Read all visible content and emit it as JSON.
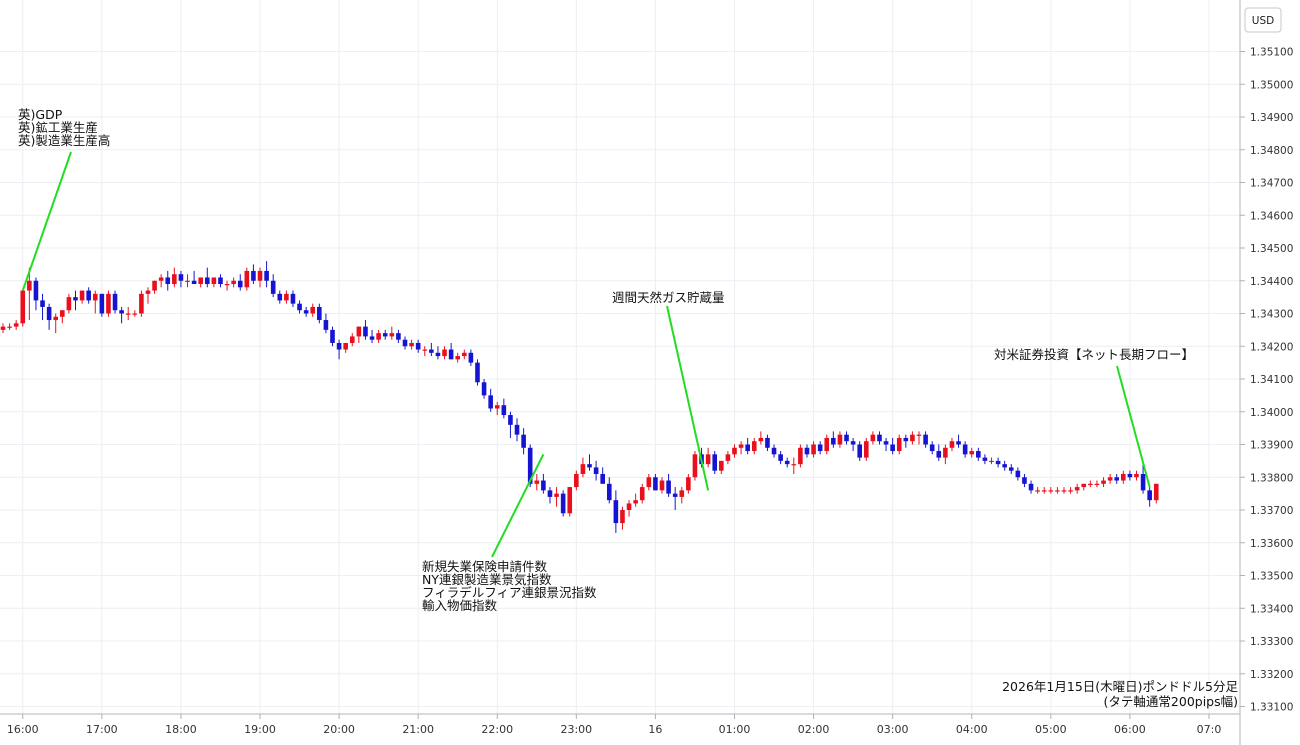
{
  "chart_data": {
    "type": "candlestick",
    "currency": "USD",
    "ylim": [
      1.3309,
      1.3519
    ],
    "grid": true,
    "y_ticks": [
      "1.35100",
      "1.35000",
      "1.34900",
      "1.34800",
      "1.34700",
      "1.34600",
      "1.34500",
      "1.34400",
      "1.34300",
      "1.34200",
      "1.34100",
      "1.34000",
      "1.33900",
      "1.33800",
      "1.33700",
      "1.33600",
      "1.33500",
      "1.33400",
      "1.33300",
      "1.33200",
      "1.33100"
    ],
    "x_ticks": [
      "16:00",
      "17:00",
      "18:00",
      "19:00",
      "20:00",
      "21:00",
      "22:00",
      "23:00",
      "16",
      "01:00",
      "02:00",
      "03:00",
      "04:00",
      "05:00",
      "06:00",
      "07:0"
    ],
    "up_color": "#e8101c",
    "down_color": "#1414d2",
    "annotation_line_color": "#22dd22",
    "candles": [
      [
        1.3425,
        1.3427,
        1.3424,
        1.3426
      ],
      [
        1.3426,
        1.3427,
        1.3425,
        1.3426
      ],
      [
        1.3426,
        1.3428,
        1.3425,
        1.3427
      ],
      [
        1.3427,
        1.3437,
        1.3426,
        1.3437
      ],
      [
        1.3437,
        1.3444,
        1.3428,
        1.344
      ],
      [
        1.344,
        1.3441,
        1.3431,
        1.3434
      ],
      [
        1.3434,
        1.3436,
        1.3428,
        1.3432
      ],
      [
        1.3432,
        1.3433,
        1.3425,
        1.3428
      ],
      [
        1.3428,
        1.343,
        1.3424,
        1.3429
      ],
      [
        1.3429,
        1.3431,
        1.3427,
        1.3431
      ],
      [
        1.3431,
        1.3436,
        1.343,
        1.3435
      ],
      [
        1.3435,
        1.3437,
        1.3431,
        1.3434
      ],
      [
        1.3434,
        1.3437,
        1.3433,
        1.3437
      ],
      [
        1.3437,
        1.3438,
        1.3433,
        1.3434
      ],
      [
        1.3434,
        1.3437,
        1.343,
        1.3436
      ],
      [
        1.3436,
        1.3436,
        1.3429,
        1.343
      ],
      [
        1.343,
        1.3437,
        1.3429,
        1.3436
      ],
      [
        1.3436,
        1.3437,
        1.343,
        1.3431
      ],
      [
        1.3431,
        1.3432,
        1.3427,
        1.343
      ],
      [
        1.343,
        1.3432,
        1.3428,
        1.343
      ],
      [
        1.343,
        1.3431,
        1.3429,
        1.343
      ],
      [
        1.343,
        1.3437,
        1.3429,
        1.3436
      ],
      [
        1.3436,
        1.3438,
        1.3433,
        1.3437
      ],
      [
        1.3437,
        1.344,
        1.3436,
        1.344
      ],
      [
        1.344,
        1.3442,
        1.3438,
        1.3441
      ],
      [
        1.3441,
        1.3443,
        1.3437,
        1.3439
      ],
      [
        1.3439,
        1.3444,
        1.3438,
        1.3442
      ],
      [
        1.3442,
        1.3443,
        1.3438,
        1.344
      ],
      [
        1.344,
        1.3442,
        1.3438,
        1.344
      ],
      [
        1.344,
        1.3443,
        1.3439,
        1.3439
      ],
      [
        1.3439,
        1.3441,
        1.3438,
        1.3441
      ],
      [
        1.3441,
        1.3444,
        1.3438,
        1.3439
      ],
      [
        1.3439,
        1.3441,
        1.3438,
        1.3441
      ],
      [
        1.3441,
        1.3442,
        1.3438,
        1.3439
      ],
      [
        1.3439,
        1.344,
        1.3437,
        1.3439
      ],
      [
        1.3439,
        1.3441,
        1.3438,
        1.344
      ],
      [
        1.344,
        1.3442,
        1.3437,
        1.3438
      ],
      [
        1.3438,
        1.3444,
        1.3437,
        1.3443
      ],
      [
        1.3443,
        1.3445,
        1.3439,
        1.344
      ],
      [
        1.344,
        1.3444,
        1.3438,
        1.3443
      ],
      [
        1.3443,
        1.3446,
        1.3438,
        1.344
      ],
      [
        1.344,
        1.3442,
        1.3435,
        1.3436
      ],
      [
        1.3436,
        1.3437,
        1.3433,
        1.3434
      ],
      [
        1.3434,
        1.3437,
        1.3433,
        1.3436
      ],
      [
        1.3436,
        1.3437,
        1.3432,
        1.3433
      ],
      [
        1.3433,
        1.3434,
        1.343,
        1.3431
      ],
      [
        1.3431,
        1.3432,
        1.3429,
        1.343
      ],
      [
        1.343,
        1.3433,
        1.3429,
        1.3432
      ],
      [
        1.3432,
        1.3433,
        1.3427,
        1.3428
      ],
      [
        1.3428,
        1.343,
        1.3424,
        1.3425
      ],
      [
        1.3425,
        1.3426,
        1.342,
        1.3421
      ],
      [
        1.3421,
        1.3422,
        1.3416,
        1.3419
      ],
      [
        1.3419,
        1.3421,
        1.3418,
        1.3421
      ],
      [
        1.3421,
        1.3424,
        1.342,
        1.3423
      ],
      [
        1.3423,
        1.3426,
        1.3421,
        1.3426
      ],
      [
        1.3426,
        1.3428,
        1.3422,
        1.3423
      ],
      [
        1.3423,
        1.3425,
        1.3421,
        1.3422
      ],
      [
        1.3422,
        1.3425,
        1.3421,
        1.3424
      ],
      [
        1.3424,
        1.3425,
        1.3422,
        1.3423
      ],
      [
        1.3423,
        1.3426,
        1.3422,
        1.3424
      ],
      [
        1.3424,
        1.3425,
        1.3421,
        1.3422
      ],
      [
        1.3422,
        1.3423,
        1.3419,
        1.342
      ],
      [
        1.342,
        1.3422,
        1.3419,
        1.3421
      ],
      [
        1.3421,
        1.3422,
        1.3418,
        1.3419
      ],
      [
        1.3419,
        1.342,
        1.3417,
        1.3419
      ],
      [
        1.3419,
        1.3421,
        1.3417,
        1.3418
      ],
      [
        1.3418,
        1.342,
        1.3416,
        1.3417
      ],
      [
        1.3417,
        1.342,
        1.3416,
        1.3419
      ],
      [
        1.3419,
        1.3421,
        1.3416,
        1.3416
      ],
      [
        1.3416,
        1.3418,
        1.3415,
        1.3417
      ],
      [
        1.3417,
        1.3419,
        1.3416,
        1.3418
      ],
      [
        1.3418,
        1.3419,
        1.3414,
        1.3415
      ],
      [
        1.3415,
        1.3416,
        1.3408,
        1.3409
      ],
      [
        1.3409,
        1.341,
        1.3404,
        1.3405
      ],
      [
        1.3405,
        1.3407,
        1.34,
        1.3401
      ],
      [
        1.3401,
        1.3403,
        1.3399,
        1.3402
      ],
      [
        1.3402,
        1.3404,
        1.3398,
        1.3399
      ],
      [
        1.3399,
        1.34,
        1.3392,
        1.3396
      ],
      [
        1.3396,
        1.3398,
        1.3391,
        1.3393
      ],
      [
        1.3393,
        1.3395,
        1.3387,
        1.3389
      ],
      [
        1.3389,
        1.339,
        1.3377,
        1.3378
      ],
      [
        1.3378,
        1.3381,
        1.3376,
        1.3379
      ],
      [
        1.3379,
        1.3381,
        1.3375,
        1.3376
      ],
      [
        1.3376,
        1.3377,
        1.3372,
        1.3374
      ],
      [
        1.3374,
        1.3377,
        1.3371,
        1.3375
      ],
      [
        1.3375,
        1.3376,
        1.3368,
        1.3369
      ],
      [
        1.3369,
        1.3377,
        1.3368,
        1.3377
      ],
      [
        1.3377,
        1.3382,
        1.3376,
        1.3381
      ],
      [
        1.3381,
        1.3386,
        1.338,
        1.3384
      ],
      [
        1.3384,
        1.3387,
        1.3382,
        1.3383
      ],
      [
        1.3383,
        1.3385,
        1.3379,
        1.3381
      ],
      [
        1.3381,
        1.3383,
        1.3378,
        1.3378
      ],
      [
        1.3378,
        1.338,
        1.3372,
        1.3373
      ],
      [
        1.3373,
        1.3376,
        1.3363,
        1.3366
      ],
      [
        1.3366,
        1.3371,
        1.3364,
        1.337
      ],
      [
        1.337,
        1.3373,
        1.3368,
        1.3372
      ],
      [
        1.3372,
        1.3375,
        1.3371,
        1.3373
      ],
      [
        1.3373,
        1.3378,
        1.3372,
        1.3377
      ],
      [
        1.3377,
        1.3381,
        1.3376,
        1.338
      ],
      [
        1.338,
        1.3381,
        1.3376,
        1.3376
      ],
      [
        1.3376,
        1.338,
        1.3375,
        1.3379
      ],
      [
        1.3379,
        1.3381,
        1.3374,
        1.3375
      ],
      [
        1.3375,
        1.3377,
        1.337,
        1.3374
      ],
      [
        1.3374,
        1.3377,
        1.3372,
        1.3376
      ],
      [
        1.3376,
        1.3381,
        1.3375,
        1.338
      ],
      [
        1.338,
        1.3388,
        1.3379,
        1.3387
      ],
      [
        1.3387,
        1.3389,
        1.3383,
        1.3384
      ],
      [
        1.3384,
        1.3389,
        1.3383,
        1.3387
      ],
      [
        1.3387,
        1.3388,
        1.3381,
        1.3382
      ],
      [
        1.3382,
        1.3385,
        1.3381,
        1.3385
      ],
      [
        1.3385,
        1.3388,
        1.3384,
        1.3387
      ],
      [
        1.3387,
        1.339,
        1.3386,
        1.3389
      ],
      [
        1.3389,
        1.3391,
        1.3387,
        1.339
      ],
      [
        1.339,
        1.3392,
        1.3387,
        1.3388
      ],
      [
        1.3388,
        1.3392,
        1.3387,
        1.3391
      ],
      [
        1.3391,
        1.3394,
        1.339,
        1.3392
      ],
      [
        1.3392,
        1.3393,
        1.3388,
        1.3389
      ],
      [
        1.3389,
        1.339,
        1.3386,
        1.3387
      ],
      [
        1.3387,
        1.3388,
        1.3384,
        1.3385
      ],
      [
        1.3385,
        1.3386,
        1.3383,
        1.3384
      ],
      [
        1.3384,
        1.3386,
        1.3381,
        1.3384
      ],
      [
        1.3384,
        1.339,
        1.3383,
        1.3389
      ],
      [
        1.3389,
        1.339,
        1.3386,
        1.3387
      ],
      [
        1.3387,
        1.3391,
        1.3386,
        1.339
      ],
      [
        1.339,
        1.3391,
        1.3387,
        1.3388
      ],
      [
        1.3388,
        1.3393,
        1.3387,
        1.3392
      ],
      [
        1.3392,
        1.3394,
        1.3389,
        1.339
      ],
      [
        1.339,
        1.3394,
        1.3389,
        1.3393
      ],
      [
        1.3393,
        1.3394,
        1.339,
        1.3391
      ],
      [
        1.3391,
        1.3392,
        1.3388,
        1.339
      ],
      [
        1.339,
        1.3391,
        1.3385,
        1.3386
      ],
      [
        1.3386,
        1.3392,
        1.3385,
        1.3391
      ],
      [
        1.3391,
        1.3394,
        1.339,
        1.3393
      ],
      [
        1.3393,
        1.3394,
        1.339,
        1.3391
      ],
      [
        1.3391,
        1.3392,
        1.3388,
        1.339
      ],
      [
        1.339,
        1.3392,
        1.3387,
        1.3388
      ],
      [
        1.3388,
        1.3393,
        1.3387,
        1.3392
      ],
      [
        1.3392,
        1.3393,
        1.3389,
        1.3391
      ],
      [
        1.3391,
        1.3394,
        1.339,
        1.3393
      ],
      [
        1.3393,
        1.3394,
        1.339,
        1.3393
      ],
      [
        1.3393,
        1.3394,
        1.3389,
        1.339
      ],
      [
        1.339,
        1.3391,
        1.3387,
        1.3388
      ],
      [
        1.3388,
        1.339,
        1.3385,
        1.3386
      ],
      [
        1.3386,
        1.339,
        1.3384,
        1.3389
      ],
      [
        1.3389,
        1.3392,
        1.3388,
        1.3391
      ],
      [
        1.3391,
        1.3393,
        1.3389,
        1.339
      ],
      [
        1.339,
        1.3391,
        1.3386,
        1.3387
      ],
      [
        1.3387,
        1.3389,
        1.3386,
        1.3388
      ],
      [
        1.3388,
        1.3389,
        1.3385,
        1.3386
      ],
      [
        1.3386,
        1.3387,
        1.3384,
        1.3385
      ],
      [
        1.3385,
        1.3386,
        1.3384,
        1.3385
      ],
      [
        1.3385,
        1.3386,
        1.3383,
        1.3384
      ],
      [
        1.3384,
        1.3385,
        1.3382,
        1.3383
      ],
      [
        1.3383,
        1.3384,
        1.3381,
        1.3382
      ],
      [
        1.3382,
        1.3383,
        1.3379,
        1.338
      ],
      [
        1.338,
        1.3381,
        1.3377,
        1.3378
      ],
      [
        1.3378,
        1.3379,
        1.3375,
        1.3376
      ],
      [
        1.3376,
        1.3377,
        1.3375,
        1.3376
      ],
      [
        1.3376,
        1.3377,
        1.3375,
        1.3376
      ],
      [
        1.3376,
        1.3377,
        1.3375,
        1.3376
      ],
      [
        1.3376,
        1.3377,
        1.3375,
        1.3376
      ],
      [
        1.3376,
        1.3377,
        1.3375,
        1.3376
      ],
      [
        1.3376,
        1.3377,
        1.3375,
        1.3376
      ],
      [
        1.3376,
        1.3378,
        1.3375,
        1.3377
      ],
      [
        1.3377,
        1.3378,
        1.3376,
        1.3378
      ],
      [
        1.3378,
        1.3379,
        1.3377,
        1.3378
      ],
      [
        1.3378,
        1.3379,
        1.3377,
        1.3378
      ],
      [
        1.3378,
        1.338,
        1.3377,
        1.3379
      ],
      [
        1.3379,
        1.3381,
        1.3378,
        1.338
      ],
      [
        1.338,
        1.3381,
        1.3378,
        1.3379
      ],
      [
        1.3379,
        1.3382,
        1.3378,
        1.3381
      ],
      [
        1.3381,
        1.3382,
        1.3379,
        1.338
      ],
      [
        1.338,
        1.3382,
        1.3379,
        1.3381
      ],
      [
        1.3381,
        1.3384,
        1.3375,
        1.3376
      ],
      [
        1.3376,
        1.3377,
        1.3371,
        1.3373
      ],
      [
        1.3373,
        1.3378,
        1.3372,
        1.3378
      ]
    ],
    "annotations": [
      {
        "lines": [
          "英)GDP",
          "英)鉱工業生産",
          "英)製造業生産高"
        ]
      },
      {
        "lines": [
          "新規失業保険申請件数",
          "NY連銀製造業景気指数",
          "フィラデルフィア連銀景況指数",
          "輸入物価指数"
        ]
      },
      {
        "lines": [
          "週間天然ガス貯蔵量"
        ]
      },
      {
        "lines": [
          "対米証券投資【ネット長期フロー】"
        ]
      }
    ],
    "footer": [
      "2026年1月15日(木曜日)ポンドドル5分足",
      "(タテ軸通常200pips幅)"
    ]
  }
}
